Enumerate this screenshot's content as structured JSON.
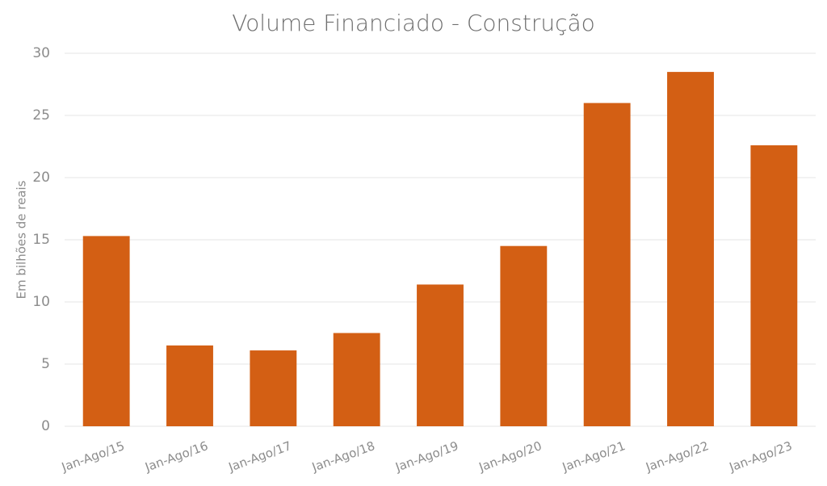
{
  "chart_data": {
    "type": "bar",
    "title": "Volume Financiado - Construção",
    "y_label": "Em bilhões de reais",
    "categories": [
      "Jan-Ago/15",
      "Jan-Ago/16",
      "Jan-Ago/17",
      "Jan-Ago/18",
      "Jan-Ago/19",
      "Jan-Ago/20",
      "Jan-Ago/21",
      "Jan-Ago/22",
      "Jan-Ago/23"
    ],
    "values": [
      15.3,
      6.5,
      6.1,
      7.5,
      11.4,
      14.5,
      26.0,
      28.5,
      22.6
    ],
    "color": "#d35f14",
    "ylim": [
      0,
      30
    ],
    "yticks": [
      0,
      5,
      10,
      15,
      20,
      25,
      30
    ],
    "grid": true
  }
}
